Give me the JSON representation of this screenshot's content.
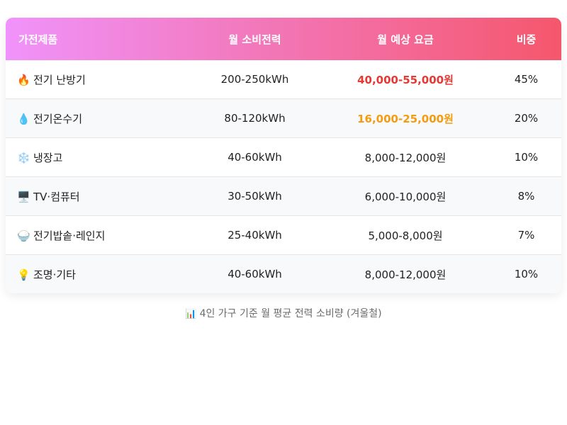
{
  "headers": {
    "appliance": "가전제품",
    "monthly_usage": "월 소비전력",
    "monthly_fee": "월 예상 요금",
    "share": "비중"
  },
  "rows": [
    {
      "icon": "🔥",
      "icon_name": "fire-icon",
      "appliance": "전기 난방기",
      "usage": "200-250kWh",
      "fee": "40,000-55,000원",
      "share": "45%",
      "fee_color": "#e53935"
    },
    {
      "icon": "💧",
      "icon_name": "water-drop-icon",
      "appliance": "전기온수기",
      "usage": "80-120kWh",
      "fee": "16,000-25,000원",
      "share": "20%",
      "fee_color": "#f39c12"
    },
    {
      "icon": "❄️",
      "icon_name": "snowflake-icon",
      "appliance": "냉장고",
      "usage": "40-60kWh",
      "fee": "8,000-12,000원",
      "share": "10%"
    },
    {
      "icon": "🖥️",
      "icon_name": "computer-monitor-icon",
      "appliance": "TV·컴퓨터",
      "usage": "30-50kWh",
      "fee": "6,000-10,000원",
      "share": "8%"
    },
    {
      "icon": "🍚",
      "icon_name": "rice-bowl-icon",
      "appliance": "전기밥솥·레인지",
      "usage": "25-40kWh",
      "fee": "5,000-8,000원",
      "share": "7%"
    },
    {
      "icon": "💡",
      "icon_name": "light-bulb-icon",
      "appliance": "조명·기타",
      "usage": "40-60kWh",
      "fee": "8,000-12,000원",
      "share": "10%"
    }
  ],
  "caption": {
    "icon": "📊",
    "icon_name": "bar-chart-icon",
    "text": "4인 가구 기준 월 평균 전력 소비량 (겨울철)"
  },
  "colors": {
    "header_gradient_start": "#f093fb",
    "header_gradient_end": "#f5576c",
    "highlight_red": "#e53935",
    "highlight_orange": "#f39c12"
  }
}
